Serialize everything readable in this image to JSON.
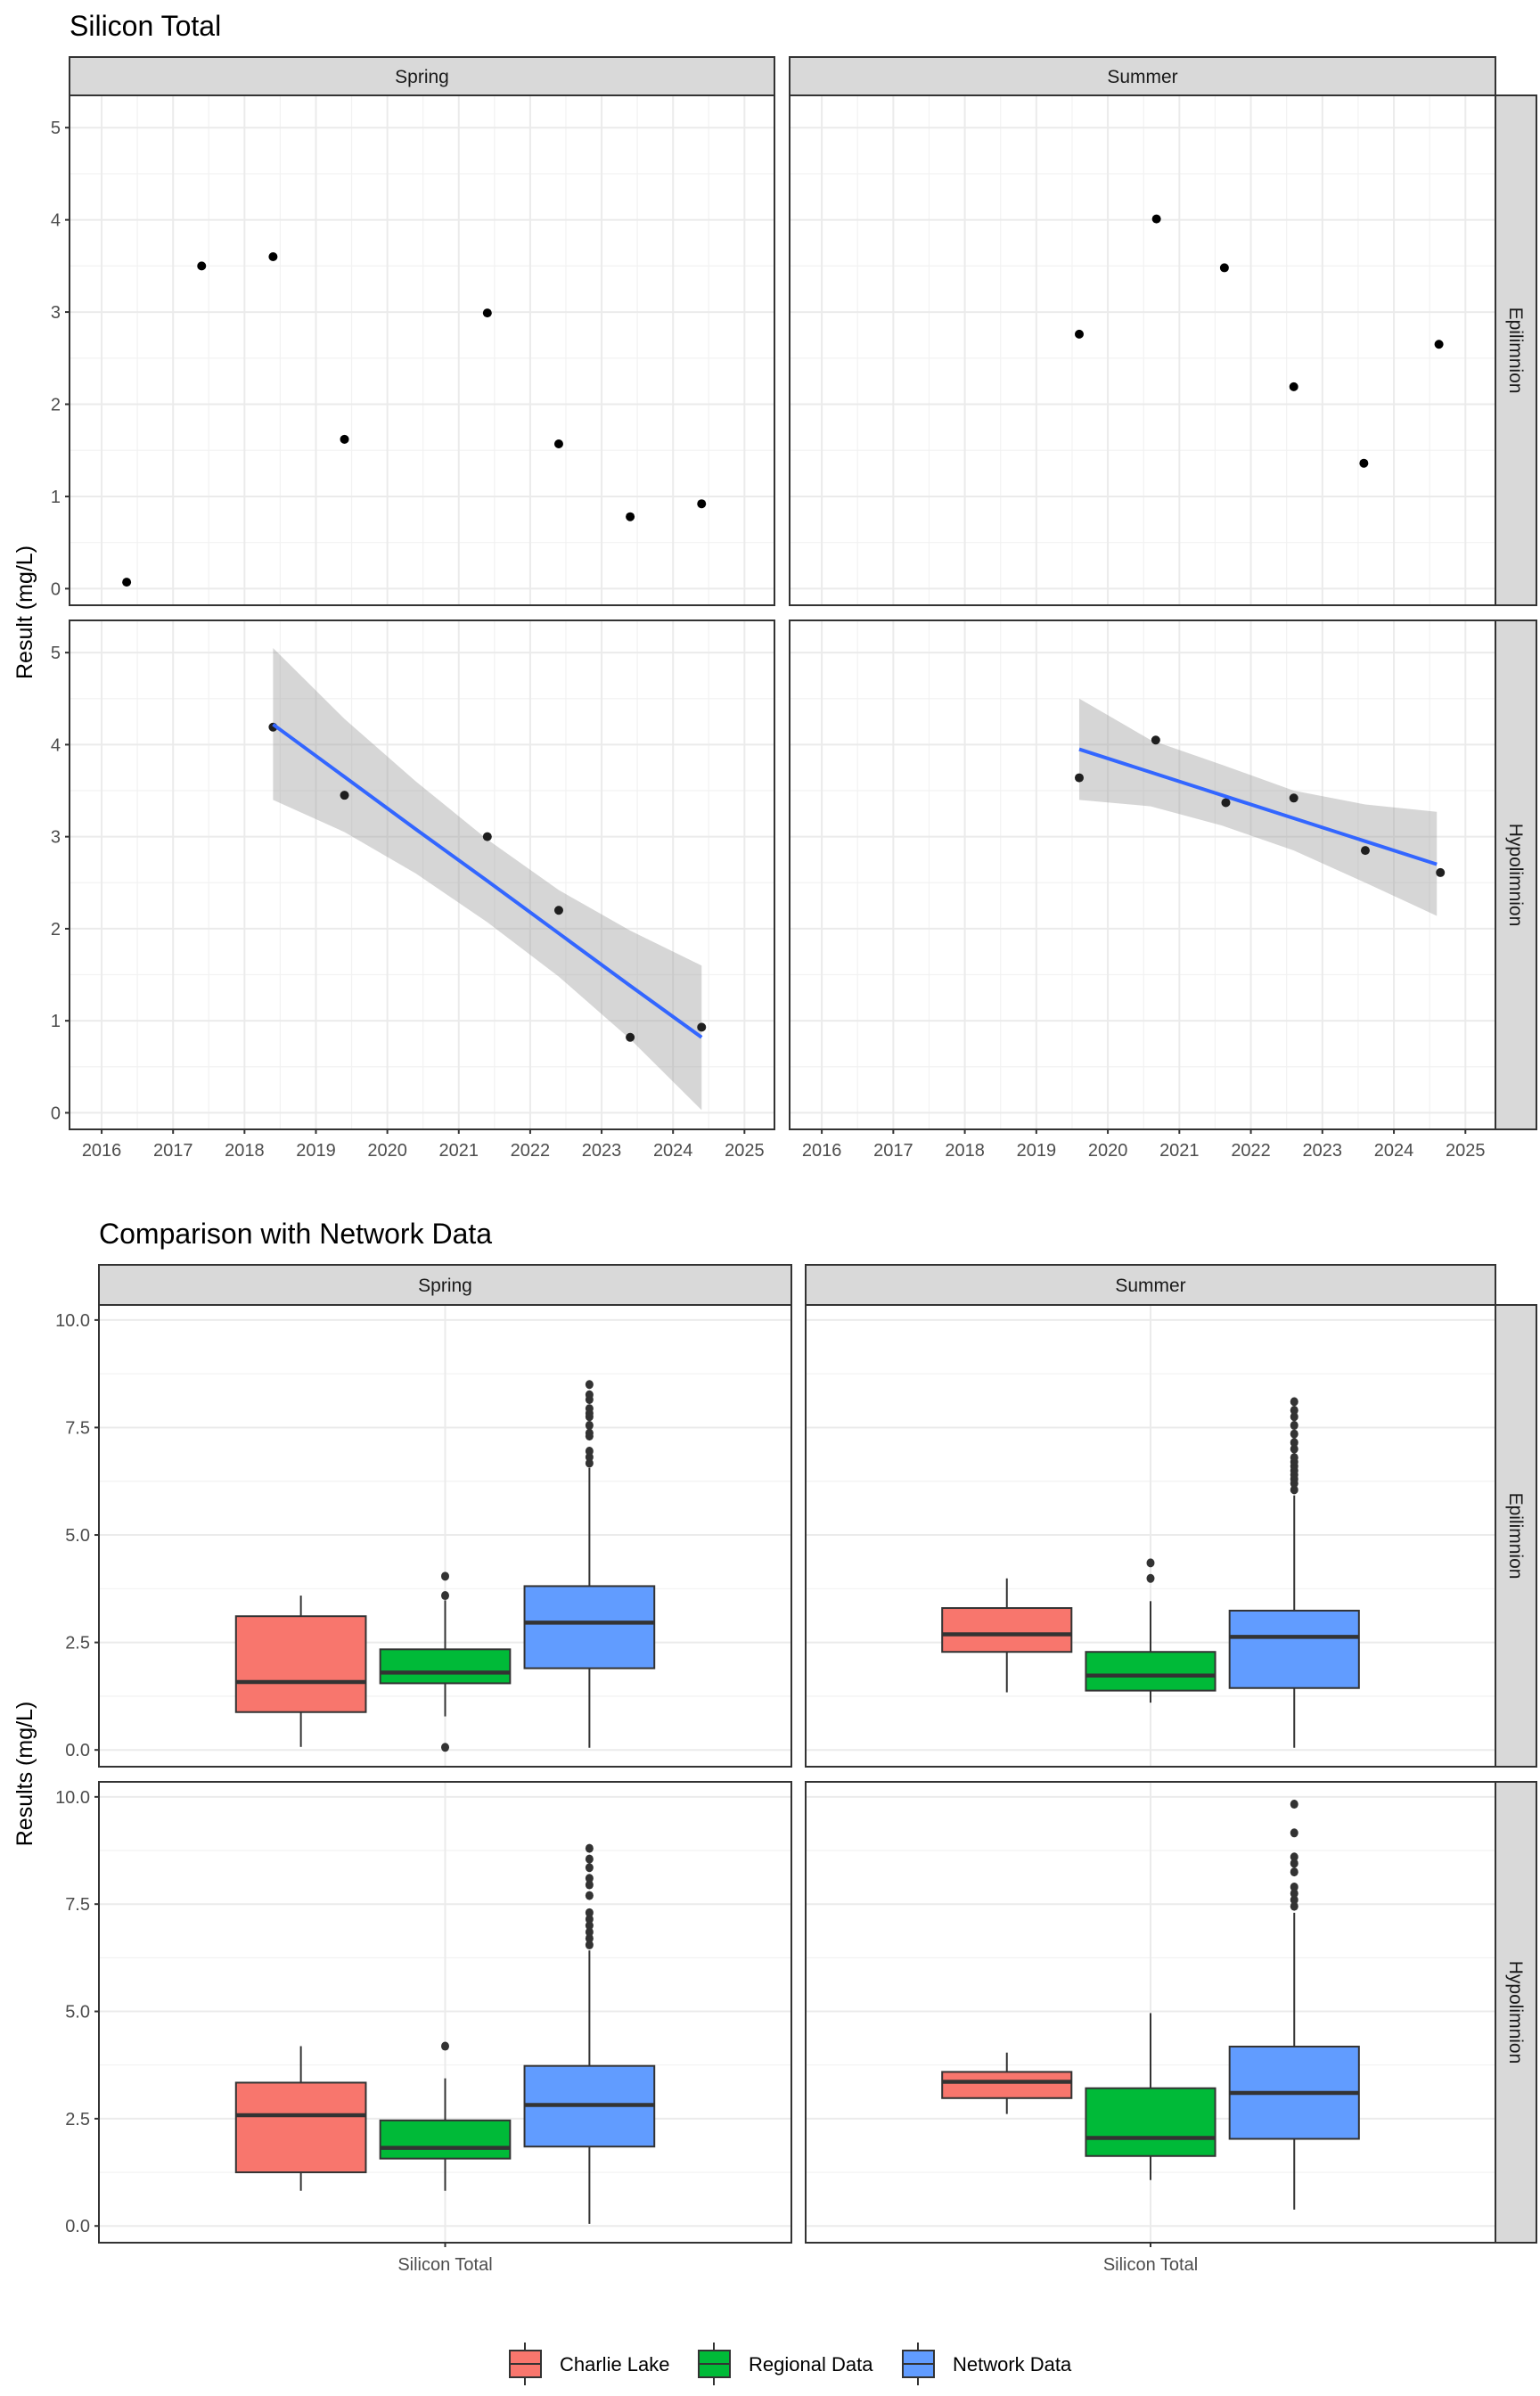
{
  "colors": {
    "charlie_lake": "#F8766D",
    "regional_data": "#00BA38",
    "network_data": "#619CFF",
    "trend_line": "#3366FF",
    "ci_band": "#999999",
    "strip_fill": "#D9D9D9"
  },
  "chart_data": [
    {
      "type": "scatter",
      "title": "Silicon Total",
      "xlabel": "",
      "ylabel": "Result (mg/L)",
      "col_facets": [
        "Spring",
        "Summer"
      ],
      "row_facets": [
        "Epilimnion",
        "Hypolimnion"
      ],
      "x_ticks": [
        "2016",
        "2017",
        "2018",
        "2019",
        "2020",
        "2021",
        "2022",
        "2023",
        "2024",
        "2025"
      ],
      "y_ticks": [
        "0",
        "1",
        "2",
        "3",
        "4",
        "5"
      ],
      "xlim": [
        2015.55,
        2025.42
      ],
      "ylim": [
        -0.18,
        5.35
      ],
      "grid": true,
      "panels": [
        {
          "col": "Spring",
          "row": "Epilimnion",
          "points": [
            [
              2016.35,
              0.07
            ],
            [
              2017.4,
              3.5
            ],
            [
              2018.4,
              3.6
            ],
            [
              2019.4,
              1.62
            ],
            [
              2021.4,
              2.99
            ],
            [
              2022.4,
              1.57
            ],
            [
              2023.4,
              0.78
            ],
            [
              2024.4,
              0.92
            ]
          ],
          "trend": null
        },
        {
          "col": "Summer",
          "row": "Epilimnion",
          "points": [
            [
              2019.6,
              2.76
            ],
            [
              2020.68,
              4.01
            ],
            [
              2021.63,
              3.48
            ],
            [
              2022.6,
              2.19
            ],
            [
              2023.58,
              1.36
            ],
            [
              2024.63,
              2.65
            ]
          ],
          "trend": null
        },
        {
          "col": "Spring",
          "row": "Hypolimnion",
          "points": [
            [
              2018.4,
              4.19
            ],
            [
              2019.4,
              3.45
            ],
            [
              2021.4,
              3.0
            ],
            [
              2022.4,
              2.2
            ],
            [
              2023.4,
              0.82
            ],
            [
              2024.4,
              0.93
            ]
          ],
          "trend": {
            "x": [
              2018.4,
              2019.4,
              2020.4,
              2021.4,
              2022.4,
              2023.4,
              2024.4
            ],
            "fit": [
              4.22,
              3.65,
              3.08,
              2.52,
              1.95,
              1.38,
              0.82
            ],
            "ci_upper": [
              5.05,
              4.28,
              3.6,
              2.97,
              2.42,
              1.98,
              1.6
            ],
            "ci_lower": [
              3.4,
              3.05,
              2.6,
              2.07,
              1.48,
              0.8,
              0.03
            ]
          }
        },
        {
          "col": "Summer",
          "row": "Hypolimnion",
          "points": [
            [
              2019.6,
              3.64
            ],
            [
              2020.67,
              4.05
            ],
            [
              2021.65,
              3.37
            ],
            [
              2022.6,
              3.42
            ],
            [
              2023.6,
              2.85
            ],
            [
              2024.65,
              2.61
            ]
          ],
          "trend": {
            "x": [
              2019.6,
              2020.6,
              2021.6,
              2022.6,
              2023.6,
              2024.6
            ],
            "fit": [
              3.95,
              3.7,
              3.45,
              3.2,
              2.95,
              2.7
            ],
            "ci_upper": [
              4.5,
              4.05,
              3.78,
              3.5,
              3.35,
              3.27
            ],
            "ci_lower": [
              3.4,
              3.33,
              3.12,
              2.85,
              2.5,
              2.14
            ]
          }
        }
      ]
    },
    {
      "type": "box",
      "title": "Comparison with Network Data",
      "xlabel": "",
      "ylabel": "Results (mg/L)",
      "category": "Silicon Total",
      "col_facets": [
        "Spring",
        "Summer"
      ],
      "row_facets": [
        "Epilimnion",
        "Hypolimnion"
      ],
      "y_ticks": [
        "0.0",
        "2.5",
        "5.0",
        "7.5",
        "10.0"
      ],
      "y_tick_values": [
        0,
        2.5,
        5,
        7.5,
        10
      ],
      "ylim": [
        -0.39,
        10.35
      ],
      "grid": true,
      "legend": {
        "position": "bottom",
        "items": [
          {
            "label": "Charlie Lake",
            "color": "#F8766D"
          },
          {
            "label": "Regional Data",
            "color": "#00BA38"
          },
          {
            "label": "Network Data",
            "color": "#619CFF"
          }
        ]
      },
      "panels": [
        {
          "col": "Spring",
          "row": "Epilimnion",
          "boxes": [
            {
              "group": "Charlie Lake",
              "lower": 0.07,
              "q1": 0.88,
              "median": 1.58,
              "q3": 3.11,
              "upper": 3.59,
              "outliers": []
            },
            {
              "group": "Regional Data",
              "lower": 0.78,
              "q1": 1.55,
              "median": 1.8,
              "q3": 2.34,
              "upper": 3.48,
              "outliers": [
                4.04,
                3.59,
                0.06
              ]
            },
            {
              "group": "Network Data",
              "lower": 0.05,
              "q1": 1.9,
              "median": 2.96,
              "q3": 3.81,
              "upper": 6.56,
              "outliers": [
                6.67,
                6.81,
                6.95,
                7.3,
                7.37,
                7.55,
                7.75,
                7.83,
                7.94,
                8.15,
                8.26,
                8.5
              ]
            }
          ]
        },
        {
          "col": "Summer",
          "row": "Epilimnion",
          "boxes": [
            {
              "group": "Charlie Lake",
              "lower": 1.34,
              "q1": 2.28,
              "median": 2.69,
              "q3": 3.3,
              "upper": 3.99,
              "outliers": []
            },
            {
              "group": "Regional Data",
              "lower": 1.1,
              "q1": 1.38,
              "median": 1.73,
              "q3": 2.28,
              "upper": 3.46,
              "outliers": [
                4.35,
                3.99
              ]
            },
            {
              "group": "Network Data",
              "lower": 0.05,
              "q1": 1.44,
              "median": 2.63,
              "q3": 3.24,
              "upper": 5.92,
              "outliers": [
                6.05,
                6.2,
                6.3,
                6.4,
                6.5,
                6.6,
                6.7,
                6.8,
                7.0,
                7.15,
                7.35,
                7.55,
                7.75,
                7.9,
                8.1
              ]
            }
          ]
        },
        {
          "col": "Spring",
          "row": "Hypolimnion",
          "boxes": [
            {
              "group": "Charlie Lake",
              "lower": 0.82,
              "q1": 1.25,
              "median": 2.58,
              "q3": 3.34,
              "upper": 4.19,
              "outliers": []
            },
            {
              "group": "Regional Data",
              "lower": 0.82,
              "q1": 1.57,
              "median": 1.82,
              "q3": 2.46,
              "upper": 3.44,
              "outliers": [
                4.19
              ]
            },
            {
              "group": "Network Data",
              "lower": 0.05,
              "q1": 1.85,
              "median": 2.82,
              "q3": 3.73,
              "upper": 6.42,
              "outliers": [
                6.55,
                6.7,
                6.85,
                7.0,
                7.15,
                7.3,
                7.7,
                7.95,
                8.1,
                8.35,
                8.55,
                8.8
              ]
            }
          ]
        },
        {
          "col": "Summer",
          "row": "Hypolimnion",
          "boxes": [
            {
              "group": "Charlie Lake",
              "lower": 2.61,
              "q1": 2.98,
              "median": 3.36,
              "q3": 3.59,
              "upper": 4.04,
              "outliers": []
            },
            {
              "group": "Regional Data",
              "lower": 1.07,
              "q1": 1.63,
              "median": 2.05,
              "q3": 3.21,
              "upper": 4.96,
              "outliers": []
            },
            {
              "group": "Network Data",
              "lower": 0.38,
              "q1": 2.03,
              "median": 3.1,
              "q3": 4.18,
              "upper": 7.3,
              "outliers": [
                7.45,
                7.6,
                7.75,
                7.9,
                8.25,
                8.45,
                8.6,
                9.16,
                9.83
              ]
            }
          ]
        }
      ]
    }
  ]
}
